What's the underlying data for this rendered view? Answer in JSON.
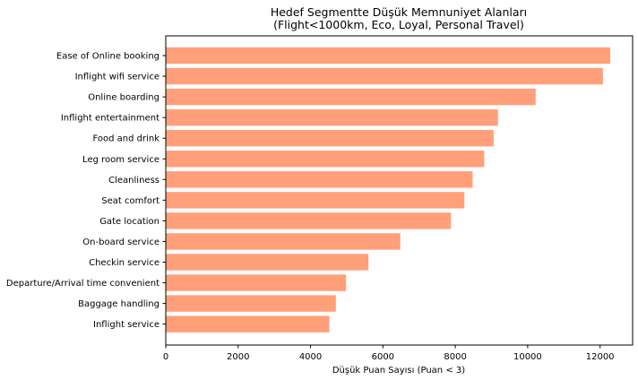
{
  "chart_data": {
    "type": "bar",
    "orientation": "horizontal",
    "title": [
      "Hedef Segmentte Düşük Memnuniyet Alanları",
      "(Flight<1000km, Eco, Loyal, Personal Travel)"
    ],
    "xlabel": "Düşük Puan Sayısı (Puan < 3)",
    "ylabel": "",
    "xlim": [
      0,
      12900
    ],
    "xticks": [
      0,
      2000,
      4000,
      6000,
      8000,
      10000,
      12000
    ],
    "grid": false,
    "bar_color": "#FFA07A",
    "categories": [
      "Ease of Online booking",
      "Inflight wifi service",
      "Online boarding",
      "Inflight entertainment",
      "Food and drink",
      "Leg room service",
      "Cleanliness",
      "Seat comfort",
      "Gate location",
      "On-board service",
      "Checkin service",
      "Departure/Arrival time convenient",
      "Baggage handling",
      "Inflight service"
    ],
    "values": [
      12280,
      12080,
      10220,
      9180,
      9060,
      8800,
      8480,
      8250,
      7880,
      6480,
      5600,
      4980,
      4700,
      4520
    ]
  }
}
